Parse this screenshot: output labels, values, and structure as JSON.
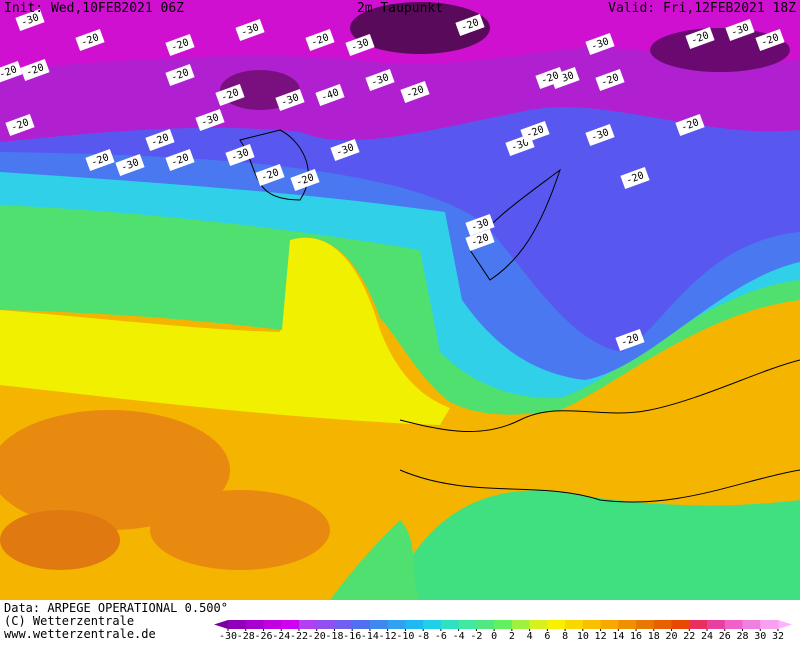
{
  "header": {
    "init": "Init: Wed,10FEB2021 06Z",
    "title": "2m Taupunkt",
    "valid": "Valid: Fri,12FEB2021 18Z"
  },
  "footer": {
    "data": "Data: ARPEGE OPERATIONAL 0.500°",
    "copyright": "(C) Wetterzentrale",
    "url": "www.wetterzentrale.de"
  },
  "colorbar": {
    "ticks": [
      -30,
      -28,
      -26,
      -24,
      -22,
      -20,
      -18,
      -16,
      -14,
      -12,
      -10,
      -8,
      -6,
      -4,
      -2,
      0,
      2,
      4,
      6,
      8,
      10,
      12,
      14,
      16,
      18,
      20,
      22,
      24,
      26,
      28,
      30,
      32
    ],
    "under_color": "#7a00a0",
    "over_color": "#ffb0ff",
    "colors": [
      "#9000b8",
      "#a800d0",
      "#c000e0",
      "#d000f0",
      "#b040f0",
      "#9050f0",
      "#7060f0",
      "#5070f0",
      "#4088f0",
      "#30a0f0",
      "#20b8f0",
      "#20d0e8",
      "#30e0c0",
      "#40e8a0",
      "#50e880",
      "#60f060",
      "#a0f040",
      "#d8f020",
      "#f8f000",
      "#f8d800",
      "#f8c000",
      "#f8a800",
      "#f09000",
      "#e87800",
      "#e86000",
      "#e84800",
      "#e83060",
      "#e840a0",
      "#f060c8",
      "#f080e0",
      "#f8a0f0"
    ]
  },
  "contour_labels": [
    -30,
    -20,
    -20,
    -30,
    -20,
    -30,
    -20,
    -20,
    -30,
    -20,
    -30,
    -40,
    -30,
    -20,
    -20,
    -20,
    -20,
    -30,
    -20,
    -30,
    -30,
    -20,
    -30,
    -20,
    -20,
    -20,
    -30,
    -30,
    -20,
    -20,
    -30,
    -20,
    -20,
    -20,
    -30,
    -20,
    -20,
    -30,
    -20,
    -20
  ]
}
